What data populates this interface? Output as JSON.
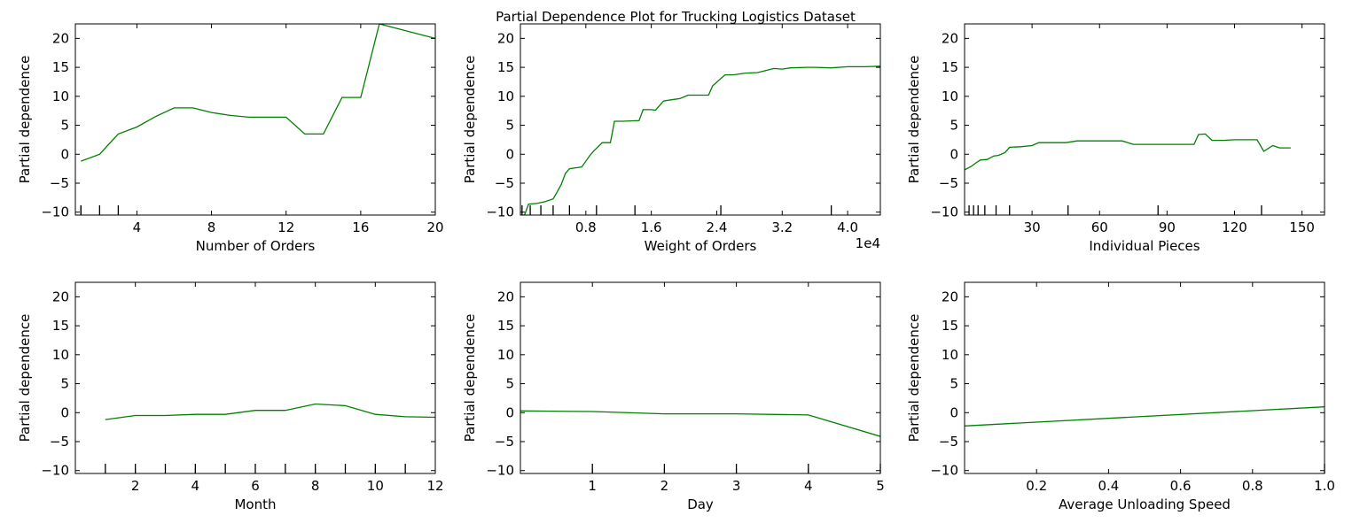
{
  "title": "Partial Dependence Plot for Trucking Logistics Dataset",
  "line_color": "#008000",
  "chart_data": [
    {
      "type": "line",
      "xlabel": "Number of Orders",
      "ylabel": "Partial dependence",
      "xlim": [
        0.7,
        20
      ],
      "ylim": [
        -10.5,
        22.5
      ],
      "xticks": [
        4,
        8,
        12,
        16,
        20
      ],
      "xtick_labels": [
        "4",
        "8",
        "12",
        "16",
        "20"
      ],
      "yticks": [
        -10,
        -5,
        0,
        5,
        10,
        15,
        20
      ],
      "ytick_labels": [
        "−10",
        "−5",
        "0",
        "5",
        "10",
        "15",
        "20"
      ],
      "x": [
        1,
        2,
        3,
        4,
        5,
        6,
        7,
        8,
        9,
        10,
        12,
        13,
        14,
        15,
        16,
        17,
        20
      ],
      "y": [
        -1.2,
        0,
        3.5,
        4.7,
        6.5,
        8.0,
        8.0,
        7.2,
        6.7,
        6.4,
        6.4,
        3.5,
        3.5,
        9.8,
        9.8,
        22.5,
        20.0
      ],
      "deciles": [
        1,
        1,
        2,
        3
      ]
    },
    {
      "type": "line",
      "xlabel": "Weight of Orders",
      "ylabel": "Partial dependence",
      "offset_label": "1e4",
      "xlim": [
        0,
        4.4
      ],
      "ylim": [
        -10.5,
        22.5
      ],
      "xticks": [
        0.8,
        1.6,
        2.4,
        3.2,
        4.0
      ],
      "xtick_labels": [
        "0.8",
        "1.6",
        "2.4",
        "3.2",
        "4.0"
      ],
      "yticks": [
        -10,
        -5,
        0,
        5,
        10,
        15,
        20
      ],
      "ytick_labels": [
        "−10",
        "−5",
        "0",
        "5",
        "10",
        "15",
        "20"
      ],
      "x": [
        0.02,
        0.05,
        0.1,
        0.2,
        0.3,
        0.4,
        0.45,
        0.5,
        0.55,
        0.6,
        0.65,
        0.75,
        0.85,
        0.9,
        1.0,
        1.1,
        1.15,
        1.25,
        1.45,
        1.5,
        1.6,
        1.65,
        1.75,
        1.85,
        1.95,
        2.05,
        2.15,
        2.3,
        2.35,
        2.5,
        2.6,
        2.75,
        2.9,
        3.1,
        3.2,
        3.3,
        3.5,
        3.6,
        3.8,
        4.0,
        4.2,
        4.4
      ],
      "y": [
        -10.5,
        -10.5,
        -8.6,
        -8.5,
        -8.2,
        -7.7,
        -6.5,
        -5.2,
        -3.3,
        -2.5,
        -2.4,
        -2.2,
        -0.2,
        0.6,
        2.0,
        2.0,
        5.7,
        5.7,
        5.8,
        7.7,
        7.7,
        7.6,
        9.2,
        9.4,
        9.6,
        10.2,
        10.2,
        10.2,
        11.8,
        13.7,
        13.7,
        14.0,
        14.1,
        14.8,
        14.7,
        14.9,
        15.0,
        15.0,
        14.9,
        15.1,
        15.1,
        15.2
      ],
      "deciles": [
        0.02,
        0.12,
        0.25,
        0.4,
        0.6,
        0.93,
        1.4,
        2.45,
        3.8
      ]
    },
    {
      "type": "line",
      "xlabel": "Individual Pieces",
      "ylabel": "Partial dependence",
      "xlim": [
        0,
        160
      ],
      "ylim": [
        -10.5,
        22.5
      ],
      "xticks": [
        30,
        60,
        90,
        120,
        150
      ],
      "xtick_labels": [
        "30",
        "60",
        "90",
        "120",
        "150"
      ],
      "yticks": [
        -10,
        -5,
        0,
        5,
        10,
        15,
        20
      ],
      "ytick_labels": [
        "−10",
        "−5",
        "0",
        "5",
        "10",
        "15",
        "20"
      ],
      "x": [
        0,
        3,
        5,
        7,
        10,
        13,
        15,
        18,
        20,
        25,
        30,
        33,
        40,
        45,
        50,
        65,
        70,
        75,
        90,
        102,
        104,
        107,
        110,
        115,
        120,
        130,
        133,
        137,
        140,
        145
      ],
      "y": [
        -2.7,
        -2.1,
        -1.5,
        -1.0,
        -0.9,
        -0.3,
        -0.2,
        0.3,
        1.2,
        1.3,
        1.5,
        2.0,
        2.0,
        2.0,
        2.3,
        2.3,
        2.3,
        1.7,
        1.7,
        1.7,
        3.4,
        3.5,
        2.4,
        2.4,
        2.5,
        2.5,
        0.5,
        1.5,
        1.1,
        1.1
      ],
      "deciles": [
        2,
        4,
        6,
        9,
        14,
        20,
        46,
        86,
        132
      ]
    },
    {
      "type": "line",
      "xlabel": "Month",
      "ylabel": "Partial dependence",
      "xlim": [
        0,
        12
      ],
      "ylim": [
        -10.5,
        22.5
      ],
      "xticks": [
        2,
        4,
        6,
        8,
        10,
        12
      ],
      "xtick_labels": [
        "2",
        "4",
        "6",
        "8",
        "10",
        "12"
      ],
      "yticks": [
        -10,
        -5,
        0,
        5,
        10,
        15,
        20
      ],
      "ytick_labels": [
        "−10",
        "−5",
        "0",
        "5",
        "10",
        "15",
        "20"
      ],
      "x": [
        1,
        2,
        3,
        4,
        5,
        6,
        7,
        8,
        9,
        10,
        11,
        12
      ],
      "y": [
        -1.2,
        -0.5,
        -0.5,
        -0.3,
        -0.3,
        0.4,
        0.4,
        1.5,
        1.2,
        -0.3,
        -0.7,
        -0.8
      ],
      "deciles": [
        1,
        2,
        3,
        4,
        5,
        6,
        7,
        8,
        9,
        10,
        11
      ]
    },
    {
      "type": "line",
      "xlabel": "Day",
      "ylabel": "Partial dependence",
      "xlim": [
        0,
        5
      ],
      "ylim": [
        -10.5,
        22.5
      ],
      "xticks": [
        1,
        2,
        3,
        4,
        5
      ],
      "xtick_labels": [
        "1",
        "2",
        "3",
        "4",
        "5"
      ],
      "yticks": [
        -10,
        -5,
        0,
        5,
        10,
        15,
        20
      ],
      "ytick_labels": [
        "−10",
        "−5",
        "0",
        "5",
        "10",
        "15",
        "20"
      ],
      "x": [
        0,
        1,
        2,
        3,
        4,
        5
      ],
      "y": [
        0.3,
        0.2,
        -0.2,
        -0.2,
        -0.4,
        -4.1
      ],
      "deciles": [
        1,
        2,
        3,
        4,
        5
      ]
    },
    {
      "type": "line",
      "xlabel": "Average Unloading Speed",
      "ylabel": "Partial dependence",
      "xlim": [
        0,
        1.0
      ],
      "ylim": [
        -10.5,
        22.5
      ],
      "xticks": [
        0.2,
        0.4,
        0.6,
        0.8,
        1.0
      ],
      "xtick_labels": [
        "0.2",
        "0.4",
        "0.6",
        "0.8",
        "1.0"
      ],
      "yticks": [
        -10,
        -5,
        0,
        5,
        10,
        15,
        20
      ],
      "ytick_labels": [
        "−10",
        "−5",
        "0",
        "5",
        "10",
        "15",
        "20"
      ],
      "x": [
        0,
        1.0
      ],
      "y": [
        -2.3,
        1.0
      ],
      "deciles": [
        1.0
      ]
    }
  ]
}
